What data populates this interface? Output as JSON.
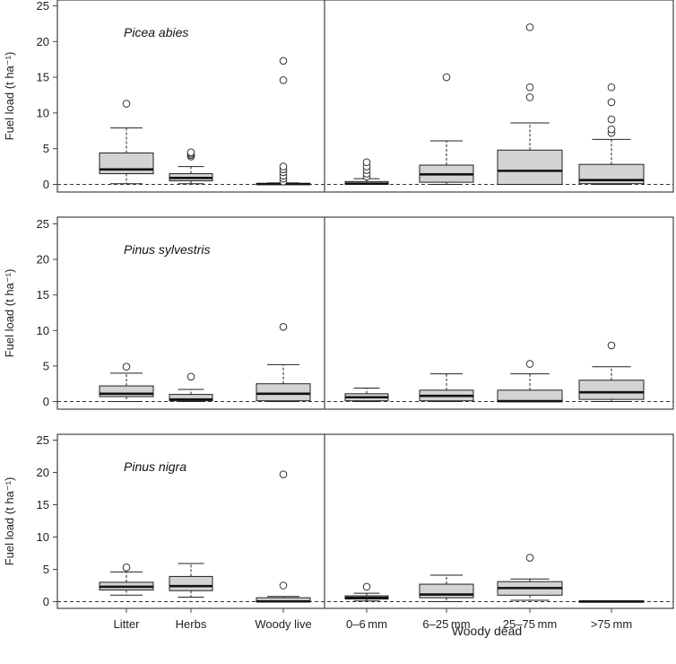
{
  "chart_data": {
    "type": "box",
    "y_label": "Fuel load (t ha⁻¹)",
    "x_group_label": "Woody dead",
    "categories": [
      "Litter",
      "Herbs",
      "Woody live",
      "0–6 mm",
      "6–25 mm",
      "25–75 mm",
      ">75 mm"
    ],
    "ylim": [
      0,
      25
    ],
    "y_ticks": [
      0,
      5,
      10,
      15,
      20,
      25
    ],
    "reference_line": 0,
    "colors": {
      "box_fill": "#d3d3d3",
      "box_stroke": "#222222",
      "median": "#111111",
      "frame": "#444444"
    },
    "panels": [
      {
        "title": "Picea abies",
        "boxes": [
          {
            "min": 0.1,
            "q1": 1.5,
            "median": 2.1,
            "q3": 4.4,
            "max": 7.9,
            "outliers": [
              11.3
            ]
          },
          {
            "min": 0.1,
            "q1": 0.5,
            "median": 0.9,
            "q3": 1.5,
            "max": 2.5,
            "outliers": [
              3.9,
              4.1,
              4.3,
              4.5
            ]
          },
          {
            "min": 0,
            "q1": 0,
            "median": 0.05,
            "q3": 0.1,
            "max": 0.2,
            "outliers": [
              0.4,
              0.8,
              1.2,
              1.7,
              2.1,
              2.5,
              14.6,
              17.3
            ]
          },
          {
            "min": 0,
            "q1": 0,
            "median": 0.1,
            "q3": 0.4,
            "max": 0.8,
            "outliers": [
              1.1,
              1.5,
              2.0,
              2.5,
              3.1
            ]
          },
          {
            "min": 0,
            "q1": 0.3,
            "median": 1.4,
            "q3": 2.7,
            "max": 6.1,
            "outliers": [
              15.0
            ]
          },
          {
            "min": 0,
            "q1": 0,
            "median": 1.9,
            "q3": 4.8,
            "max": 8.6,
            "outliers": [
              12.2,
              13.6,
              22.0
            ]
          },
          {
            "min": 0,
            "q1": 0.1,
            "median": 0.6,
            "q3": 2.8,
            "max": 6.3,
            "outliers": [
              7.2,
              7.7,
              9.1,
              11.5,
              13.6
            ]
          }
        ]
      },
      {
        "title": "Pinus sylvestris",
        "boxes": [
          {
            "min": 0,
            "q1": 0.7,
            "median": 1.1,
            "q3": 2.2,
            "max": 4.0,
            "outliers": [
              4.9
            ]
          },
          {
            "min": 0,
            "q1": 0.1,
            "median": 0.3,
            "q3": 1.0,
            "max": 1.7,
            "outliers": [
              3.5
            ]
          },
          {
            "min": 0,
            "q1": 0.1,
            "median": 1.1,
            "q3": 2.5,
            "max": 5.2,
            "outliers": [
              10.5
            ]
          },
          {
            "min": 0,
            "q1": 0.1,
            "median": 0.6,
            "q3": 1.1,
            "max": 1.9,
            "outliers": []
          },
          {
            "min": 0,
            "q1": 0.1,
            "median": 0.8,
            "q3": 1.6,
            "max": 3.9,
            "outliers": []
          },
          {
            "min": 0,
            "q1": 0,
            "median": 0.05,
            "q3": 1.6,
            "max": 3.9,
            "outliers": [
              5.3
            ]
          },
          {
            "min": 0,
            "q1": 0.3,
            "median": 1.3,
            "q3": 3.0,
            "max": 4.9,
            "outliers": [
              7.9
            ]
          }
        ]
      },
      {
        "title": "Pinus nigra",
        "boxes": [
          {
            "min": 1.0,
            "q1": 1.8,
            "median": 2.3,
            "q3": 3.0,
            "max": 4.6,
            "outliers": [
              5.3
            ]
          },
          {
            "min": 0.7,
            "q1": 1.7,
            "median": 2.4,
            "q3": 3.9,
            "max": 5.9,
            "outliers": []
          },
          {
            "min": 0,
            "q1": 0,
            "median": 0.05,
            "q3": 0.6,
            "max": 0.8,
            "outliers": [
              2.5,
              19.7
            ]
          },
          {
            "min": 0.1,
            "q1": 0.4,
            "median": 0.6,
            "q3": 0.9,
            "max": 1.3,
            "outliers": [
              2.3
            ]
          },
          {
            "min": 0,
            "q1": 0.6,
            "median": 1.1,
            "q3": 2.7,
            "max": 4.1,
            "outliers": []
          },
          {
            "min": 0.2,
            "q1": 1.0,
            "median": 2.1,
            "q3": 3.1,
            "max": 3.5,
            "outliers": [
              6.8
            ]
          },
          {
            "min": 0,
            "q1": 0,
            "median": 0.02,
            "q3": 0.05,
            "max": 0.1,
            "outliers": []
          }
        ]
      }
    ]
  }
}
